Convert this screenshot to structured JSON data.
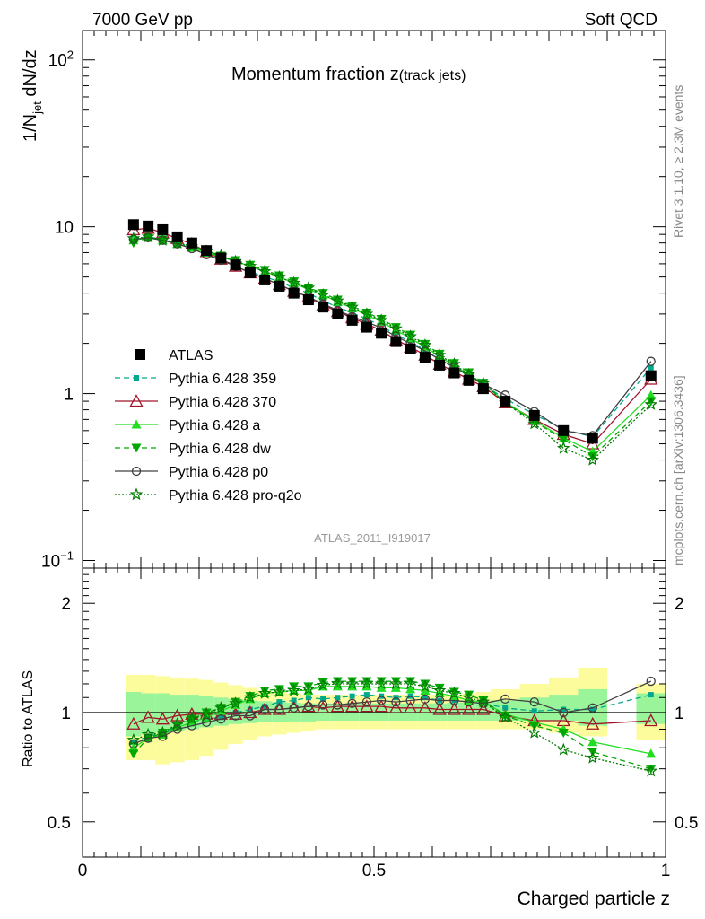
{
  "header": {
    "left_label": "7000 GeV pp",
    "right_label": "Soft QCD"
  },
  "side_labels": {
    "rivet": "Rivet 3.1.10, ≥ 2.3M events",
    "mcplots": "mcplots.cern.ch [arXiv:1306.3436]"
  },
  "chart_data": [
    {
      "type": "line",
      "panel": "main",
      "title_main": "Momentum fraction z",
      "title_sub": "(track jets)",
      "ylabel_main": "1/N",
      "ylabel_sub": "jet",
      "ylabel_tail": " dN/dz",
      "xlabel": "Charged particle z",
      "yscale": "log",
      "ylim": [
        0.09,
        150
      ],
      "xlim": [
        0,
        1
      ],
      "y_tick_labels": [
        {
          "value": 100,
          "label": "10",
          "sup": "2"
        },
        {
          "value": 10,
          "label": "10",
          "sup": ""
        },
        {
          "value": 1,
          "label": "1",
          "sup": ""
        },
        {
          "value": 0.1,
          "label": "10",
          "sup": "−1"
        }
      ],
      "watermark": "ATLAS_2011_I919017",
      "x": [
        0.0875,
        0.1125,
        0.1375,
        0.1625,
        0.1875,
        0.2125,
        0.2375,
        0.2625,
        0.2875,
        0.3125,
        0.3375,
        0.3625,
        0.3875,
        0.4125,
        0.4375,
        0.4625,
        0.4875,
        0.5125,
        0.5375,
        0.5625,
        0.5875,
        0.6125,
        0.6375,
        0.6625,
        0.6875,
        0.725,
        0.775,
        0.825,
        0.875,
        0.975
      ],
      "series": [
        {
          "name": "ATLAS",
          "style": "data",
          "color": "#000000",
          "values": [
            10.3,
            10.1,
            9.6,
            8.7,
            8.0,
            7.2,
            6.5,
            5.9,
            5.3,
            4.8,
            4.4,
            4.0,
            3.65,
            3.3,
            3.0,
            2.75,
            2.5,
            2.3,
            2.05,
            1.85,
            1.65,
            1.48,
            1.33,
            1.2,
            1.07,
            0.9,
            0.74,
            0.6,
            0.54,
            1.28
          ],
          "ratio_band": [
            [
              0.86,
              1.14
            ],
            [
              0.87,
              1.13
            ],
            [
              0.88,
              1.13
            ],
            [
              0.89,
              1.12
            ],
            [
              0.9,
              1.12
            ],
            [
              0.91,
              1.11
            ],
            [
              0.92,
              1.1
            ],
            [
              0.93,
              1.09
            ],
            [
              0.935,
              1.08
            ],
            [
              0.94,
              1.075
            ],
            [
              0.94,
              1.07
            ],
            [
              0.945,
              1.065
            ],
            [
              0.945,
              1.06
            ],
            [
              0.95,
              1.06
            ],
            [
              0.95,
              1.06
            ],
            [
              0.95,
              1.06
            ],
            [
              0.95,
              1.06
            ],
            [
              0.95,
              1.06
            ],
            [
              0.95,
              1.06
            ],
            [
              0.95,
              1.06
            ],
            [
              0.95,
              1.06
            ],
            [
              0.95,
              1.06
            ],
            [
              0.95,
              1.065
            ],
            [
              0.95,
              1.065
            ],
            [
              0.95,
              1.07
            ],
            [
              0.95,
              1.08
            ],
            [
              0.95,
              1.1
            ],
            [
              0.95,
              1.12
            ],
            [
              0.92,
              1.16
            ],
            [
              0.93,
              1.13
            ]
          ],
          "ratio_band_outer": [
            [
              0.74,
              1.27
            ],
            [
              0.74,
              1.27
            ],
            [
              0.72,
              1.26
            ],
            [
              0.73,
              1.25
            ],
            [
              0.74,
              1.24
            ],
            [
              0.76,
              1.23
            ],
            [
              0.79,
              1.21
            ],
            [
              0.82,
              1.19
            ],
            [
              0.84,
              1.17
            ],
            [
              0.86,
              1.15
            ],
            [
              0.87,
              1.14
            ],
            [
              0.88,
              1.13
            ],
            [
              0.89,
              1.12
            ],
            [
              0.9,
              1.12
            ],
            [
              0.9,
              1.12
            ],
            [
              0.9,
              1.12
            ],
            [
              0.9,
              1.12
            ],
            [
              0.9,
              1.12
            ],
            [
              0.9,
              1.12
            ],
            [
              0.9,
              1.12
            ],
            [
              0.9,
              1.12
            ],
            [
              0.9,
              1.12
            ],
            [
              0.9,
              1.12
            ],
            [
              0.9,
              1.13
            ],
            [
              0.9,
              1.14
            ],
            [
              0.9,
              1.16
            ],
            [
              0.9,
              1.2
            ],
            [
              0.88,
              1.25
            ],
            [
              0.86,
              1.33
            ],
            [
              0.84,
              1.2
            ]
          ]
        },
        {
          "name": "Pythia 6.428 359",
          "style": "dashed",
          "marker": "square-small",
          "color": "#00a88c",
          "values": [
            8.6,
            8.7,
            8.4,
            7.9,
            7.5,
            6.9,
            6.3,
            5.9,
            5.4,
            5.0,
            4.7,
            4.3,
            4.0,
            3.6,
            3.3,
            3.05,
            2.8,
            2.55,
            2.25,
            2.05,
            1.82,
            1.6,
            1.43,
            1.28,
            1.13,
            0.93,
            0.75,
            0.61,
            0.55,
            1.43
          ],
          "ratios": [
            0.83,
            0.86,
            0.88,
            0.91,
            0.94,
            0.96,
            0.97,
            1.0,
            1.02,
            1.04,
            1.07,
            1.08,
            1.1,
            1.09,
            1.1,
            1.11,
            1.12,
            1.11,
            1.1,
            1.11,
            1.1,
            1.08,
            1.08,
            1.07,
            1.06,
            1.03,
            1.01,
            1.02,
            1.02,
            1.12
          ]
        },
        {
          "name": "Pythia 6.428 370",
          "style": "solid",
          "marker": "triangle-open",
          "color": "#a0142a",
          "values": [
            9.6,
            9.8,
            9.2,
            8.5,
            7.9,
            7.1,
            6.4,
            5.8,
            5.3,
            4.9,
            4.5,
            4.1,
            3.8,
            3.4,
            3.1,
            2.85,
            2.6,
            2.4,
            2.1,
            1.9,
            1.7,
            1.5,
            1.35,
            1.22,
            1.1,
            0.88,
            0.7,
            0.57,
            0.5,
            1.22
          ],
          "ratios": [
            0.93,
            0.97,
            0.96,
            0.98,
            0.99,
            0.99,
            0.99,
            0.99,
            1.0,
            1.02,
            1.02,
            1.03,
            1.04,
            1.03,
            1.04,
            1.04,
            1.04,
            1.04,
            1.03,
            1.03,
            1.03,
            1.02,
            1.02,
            1.02,
            1.02,
            0.98,
            0.95,
            0.95,
            0.93,
            0.95
          ]
        },
        {
          "name": "Pythia 6.428 a",
          "style": "solid",
          "marker": "triangle-filled",
          "color": "#22dd22",
          "values": [
            8.3,
            8.6,
            8.3,
            7.9,
            7.5,
            7.0,
            6.6,
            6.2,
            5.8,
            5.4,
            5.0,
            4.6,
            4.2,
            3.9,
            3.55,
            3.25,
            2.95,
            2.7,
            2.4,
            2.15,
            1.9,
            1.67,
            1.47,
            1.3,
            1.15,
            0.89,
            0.69,
            0.54,
            0.45,
            0.98
          ],
          "ratios": [
            0.8,
            0.85,
            0.87,
            0.91,
            0.94,
            0.97,
            1.01,
            1.05,
            1.09,
            1.13,
            1.14,
            1.15,
            1.15,
            1.18,
            1.18,
            1.18,
            1.18,
            1.17,
            1.17,
            1.16,
            1.15,
            1.13,
            1.11,
            1.08,
            1.07,
            0.99,
            0.94,
            0.9,
            0.83,
            0.77
          ]
        },
        {
          "name": "Pythia 6.428 dw",
          "style": "dashed",
          "marker": "triangle-down-filled",
          "color": "#00a800",
          "values": [
            8.0,
            8.6,
            8.4,
            8.0,
            7.7,
            7.2,
            6.7,
            6.3,
            5.9,
            5.5,
            5.1,
            4.7,
            4.3,
            4.0,
            3.65,
            3.35,
            3.05,
            2.8,
            2.5,
            2.25,
            1.98,
            1.73,
            1.52,
            1.34,
            1.16,
            0.88,
            0.68,
            0.53,
            0.42,
            0.9
          ],
          "ratios": [
            0.77,
            0.85,
            0.88,
            0.92,
            0.96,
            1.0,
            1.03,
            1.07,
            1.11,
            1.15,
            1.16,
            1.18,
            1.18,
            1.21,
            1.22,
            1.22,
            1.22,
            1.22,
            1.22,
            1.22,
            1.2,
            1.17,
            1.14,
            1.12,
            1.08,
            0.98,
            0.92,
            0.88,
            0.78,
            0.7
          ]
        },
        {
          "name": "Pythia 6.428 p0",
          "style": "solid",
          "marker": "circle-open",
          "color": "#404040",
          "values": [
            8.4,
            8.6,
            8.3,
            7.9,
            7.4,
            6.8,
            6.3,
            5.8,
            5.3,
            4.9,
            4.5,
            4.1,
            3.8,
            3.45,
            3.15,
            2.9,
            2.68,
            2.48,
            2.2,
            2.0,
            1.8,
            1.6,
            1.44,
            1.28,
            1.14,
            0.98,
            0.78,
            0.6,
            0.56,
            1.56
          ],
          "ratios": [
            0.82,
            0.85,
            0.86,
            0.9,
            0.92,
            0.94,
            0.96,
            0.98,
            0.98,
            1.02,
            1.02,
            1.03,
            1.04,
            1.05,
            1.05,
            1.06,
            1.07,
            1.08,
            1.07,
            1.08,
            1.09,
            1.08,
            1.08,
            1.07,
            1.06,
            1.09,
            1.07,
            1.0,
            1.03,
            1.22
          ]
        },
        {
          "name": "Pythia 6.428 pro-q2o",
          "style": "dotted",
          "marker": "star",
          "color": "#007a00",
          "values": [
            8.5,
            8.7,
            8.3,
            8.0,
            7.6,
            7.1,
            6.7,
            6.2,
            5.8,
            5.4,
            5.0,
            4.6,
            4.3,
            3.9,
            3.6,
            3.3,
            3.0,
            2.75,
            2.45,
            2.2,
            1.95,
            1.7,
            1.5,
            1.3,
            1.15,
            0.88,
            0.66,
            0.47,
            0.4,
            0.86
          ],
          "ratios": [
            0.84,
            0.87,
            0.88,
            0.93,
            0.96,
            0.99,
            1.03,
            1.06,
            1.1,
            1.13,
            1.14,
            1.15,
            1.16,
            1.19,
            1.2,
            1.2,
            1.2,
            1.2,
            1.2,
            1.2,
            1.18,
            1.15,
            1.13,
            1.1,
            1.07,
            0.97,
            0.88,
            0.79,
            0.75,
            0.69
          ]
        }
      ]
    },
    {
      "type": "line",
      "panel": "ratio",
      "ylabel": "Ratio to ATLAS",
      "yscale": "log",
      "ylim": [
        0.4,
        2.5
      ],
      "y_tick_labels": [
        {
          "value": 2,
          "label": "2"
        },
        {
          "value": 1,
          "label": "1"
        },
        {
          "value": 0.5,
          "label": "0.5"
        }
      ],
      "x_tick_labels": [
        {
          "value": 0,
          "label": "0"
        },
        {
          "value": 0.5,
          "label": "0.5"
        },
        {
          "value": 1,
          "label": "1"
        }
      ],
      "xlim": [
        0,
        1
      ],
      "reference_line": 1
    }
  ]
}
